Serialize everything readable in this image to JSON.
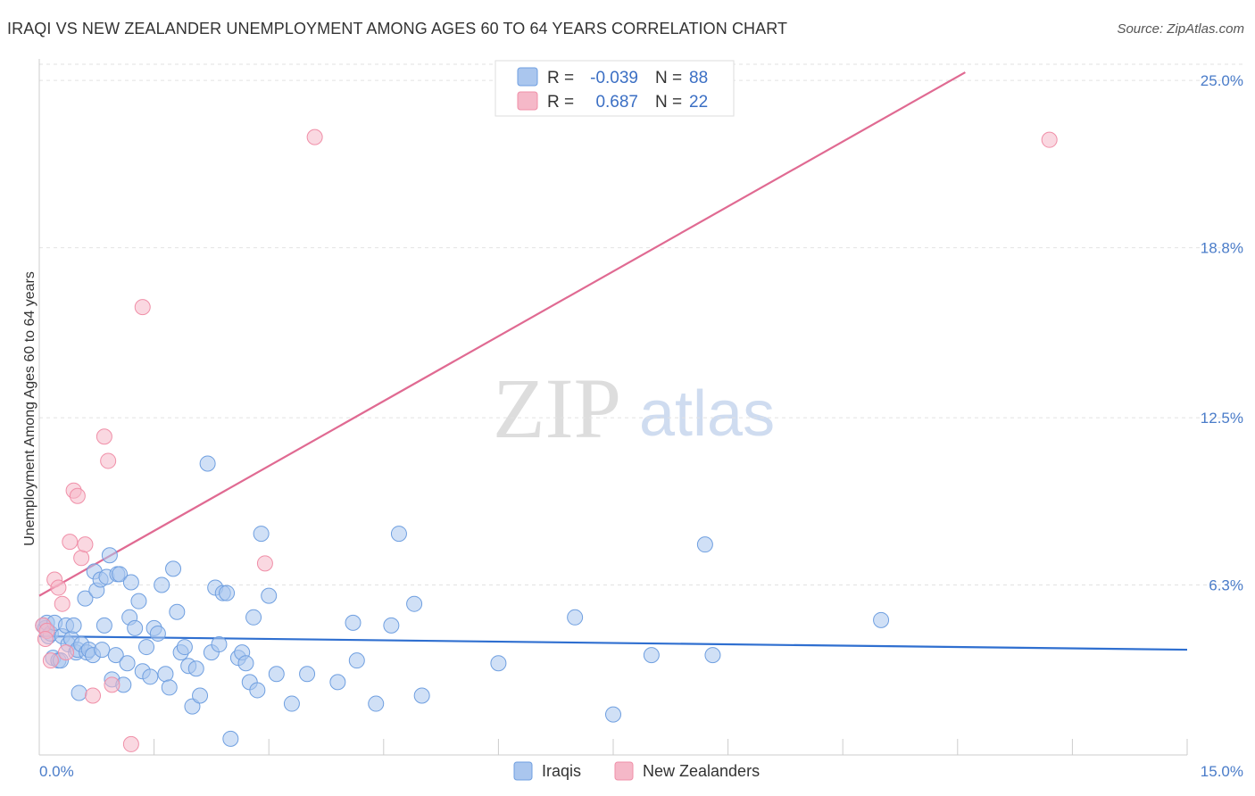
{
  "header": {
    "title": "IRAQI VS NEW ZEALANDER UNEMPLOYMENT AMONG AGES 60 TO 64 YEARS CORRELATION CHART",
    "source": "Source: ZipAtlas.com"
  },
  "watermark": {
    "zip": "ZIP",
    "atlas": "atlas"
  },
  "legend": {
    "rows": [
      {
        "r_label": "R =",
        "r_value": "-0.039",
        "n_label": "N =",
        "n_value": "88",
        "color": "#aac6ee"
      },
      {
        "r_label": "R =",
        "r_value": "0.687",
        "n_label": "N =",
        "n_value": "22",
        "color": "#f5b8c8"
      }
    ]
  },
  "chart_data": {
    "type": "scatter",
    "title": "IRAQI VS NEW ZEALANDER UNEMPLOYMENT AMONG AGES 60 TO 64 YEARS CORRELATION CHART",
    "xlabel": "",
    "ylabel": "Unemployment Among Ages 60 to 64 years",
    "xlim": [
      0,
      15
    ],
    "ylim": [
      0,
      25.6
    ],
    "x_tick_labels": [
      "0.0%",
      "15.0%"
    ],
    "y_ticks": [
      6.3,
      12.5,
      18.8,
      25.0
    ],
    "y_tick_labels": [
      "6.3%",
      "12.5%",
      "18.8%",
      "25.0%"
    ],
    "legend_position": "bottom-center",
    "series": [
      {
        "name": "Iraqis",
        "color": "#6f9fe0",
        "fill": "#aac6ee",
        "trend": {
          "x": [
            0.0,
            15.0
          ],
          "y": [
            4.4,
            3.9
          ],
          "color": "#2f6fd0"
        },
        "points": [
          [
            0.05,
            4.8
          ],
          [
            0.08,
            4.7
          ],
          [
            0.1,
            4.9
          ],
          [
            0.12,
            4.4
          ],
          [
            0.15,
            4.5
          ],
          [
            0.18,
            3.6
          ],
          [
            0.2,
            4.9
          ],
          [
            0.25,
            3.5
          ],
          [
            0.28,
            3.5
          ],
          [
            0.3,
            4.4
          ],
          [
            0.35,
            4.8
          ],
          [
            0.38,
            4.1
          ],
          [
            0.42,
            4.3
          ],
          [
            0.45,
            4.8
          ],
          [
            0.48,
            3.8
          ],
          [
            0.5,
            3.9
          ],
          [
            0.52,
            2.3
          ],
          [
            0.55,
            4.1
          ],
          [
            0.6,
            5.8
          ],
          [
            0.62,
            3.8
          ],
          [
            0.65,
            3.9
          ],
          [
            0.7,
            3.7
          ],
          [
            0.72,
            6.8
          ],
          [
            0.75,
            6.1
          ],
          [
            0.8,
            6.5
          ],
          [
            0.82,
            3.9
          ],
          [
            0.85,
            4.8
          ],
          [
            0.88,
            6.6
          ],
          [
            0.92,
            7.4
          ],
          [
            0.95,
            2.8
          ],
          [
            1.0,
            3.7
          ],
          [
            1.02,
            6.7
          ],
          [
            1.05,
            6.7
          ],
          [
            1.1,
            2.6
          ],
          [
            1.15,
            3.4
          ],
          [
            1.18,
            5.1
          ],
          [
            1.2,
            6.4
          ],
          [
            1.25,
            4.7
          ],
          [
            1.3,
            5.7
          ],
          [
            1.35,
            3.1
          ],
          [
            1.4,
            4.0
          ],
          [
            1.45,
            2.9
          ],
          [
            1.5,
            4.7
          ],
          [
            1.55,
            4.5
          ],
          [
            1.6,
            6.3
          ],
          [
            1.65,
            3.0
          ],
          [
            1.7,
            2.5
          ],
          [
            1.75,
            6.9
          ],
          [
            1.8,
            5.3
          ],
          [
            1.85,
            3.8
          ],
          [
            1.9,
            4.0
          ],
          [
            1.95,
            3.3
          ],
          [
            2.0,
            1.8
          ],
          [
            2.05,
            3.2
          ],
          [
            2.1,
            2.2
          ],
          [
            2.2,
            10.8
          ],
          [
            2.25,
            3.8
          ],
          [
            2.3,
            6.2
          ],
          [
            2.35,
            4.1
          ],
          [
            2.4,
            6.0
          ],
          [
            2.45,
            6.0
          ],
          [
            2.5,
            0.6
          ],
          [
            2.6,
            3.6
          ],
          [
            2.65,
            3.8
          ],
          [
            2.7,
            3.4
          ],
          [
            2.75,
            2.7
          ],
          [
            2.8,
            5.1
          ],
          [
            2.85,
            2.4
          ],
          [
            2.9,
            8.2
          ],
          [
            3.0,
            5.9
          ],
          [
            3.1,
            3.0
          ],
          [
            3.3,
            1.9
          ],
          [
            3.5,
            3.0
          ],
          [
            3.9,
            2.7
          ],
          [
            4.1,
            4.9
          ],
          [
            4.15,
            3.5
          ],
          [
            4.4,
            1.9
          ],
          [
            4.6,
            4.8
          ],
          [
            4.7,
            8.2
          ],
          [
            4.9,
            5.6
          ],
          [
            5.0,
            2.2
          ],
          [
            6.0,
            3.4
          ],
          [
            7.0,
            5.1
          ],
          [
            7.5,
            1.5
          ],
          [
            8.0,
            3.7
          ],
          [
            8.7,
            7.8
          ],
          [
            8.8,
            3.7
          ],
          [
            11.0,
            5.0
          ]
        ]
      },
      {
        "name": "New Zealanders",
        "color": "#f08fa8",
        "fill": "#f5b8c8",
        "trend": {
          "x": [
            0.0,
            12.1
          ],
          "y": [
            5.9,
            25.3
          ],
          "color": "#e06a92"
        },
        "points": [
          [
            0.05,
            4.8
          ],
          [
            0.1,
            4.6
          ],
          [
            0.15,
            3.5
          ],
          [
            0.2,
            6.5
          ],
          [
            0.25,
            6.2
          ],
          [
            0.3,
            5.6
          ],
          [
            0.35,
            3.8
          ],
          [
            0.4,
            7.9
          ],
          [
            0.45,
            9.8
          ],
          [
            0.5,
            9.6
          ],
          [
            0.55,
            7.3
          ],
          [
            0.6,
            7.8
          ],
          [
            0.7,
            2.2
          ],
          [
            0.85,
            11.8
          ],
          [
            0.9,
            10.9
          ],
          [
            0.95,
            2.6
          ],
          [
            1.2,
            0.4
          ],
          [
            1.35,
            16.6
          ],
          [
            2.95,
            7.1
          ],
          [
            3.6,
            22.9
          ],
          [
            13.2,
            22.8
          ],
          [
            0.08,
            4.3
          ]
        ]
      }
    ]
  },
  "bottom_legend": [
    {
      "label": "Iraqis",
      "color": "#aac6ee"
    },
    {
      "label": "New Zealanders",
      "color": "#f5b8c8"
    }
  ]
}
